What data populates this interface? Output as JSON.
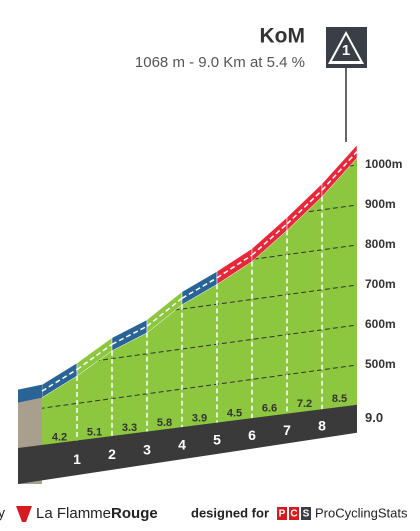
{
  "chart_data": {
    "type": "climb",
    "title": "KoM",
    "subtitle": "1068 m - 9.0 Km at 5.4 %",
    "badge": "1",
    "categories": [
      "1",
      "2",
      "3",
      "4",
      "5",
      "6",
      "7",
      "8",
      "9.0"
    ],
    "values": [
      4.2,
      5.1,
      3.3,
      5.8,
      3.9,
      4.5,
      6.6,
      7.2,
      8.5
    ],
    "colors": [
      "#2a6496",
      "#8dc63f",
      "#2a6496",
      "#8dc63f",
      "#2a6496",
      "#e8283a",
      "#e8283a",
      "#e8283a",
      "#e8283a"
    ],
    "face_color": "#8dc63f",
    "ylim": [
      450,
      1050
    ],
    "yticks": [
      {
        "value": 500,
        "label": "500m"
      },
      {
        "value": 600,
        "label": "600m"
      },
      {
        "value": 700,
        "label": "700m"
      },
      {
        "value": 800,
        "label": "800m"
      },
      {
        "value": 900,
        "label": "900m"
      },
      {
        "value": 1000,
        "label": "1000m"
      }
    ],
    "grid": true
  },
  "footer": {
    "cut": "y",
    "brand": "La Flamme",
    "brand_bold": "Rouge",
    "designed": "designed for",
    "pcs": [
      "P",
      "C",
      "S"
    ],
    "site": "ProCyclingStats"
  }
}
